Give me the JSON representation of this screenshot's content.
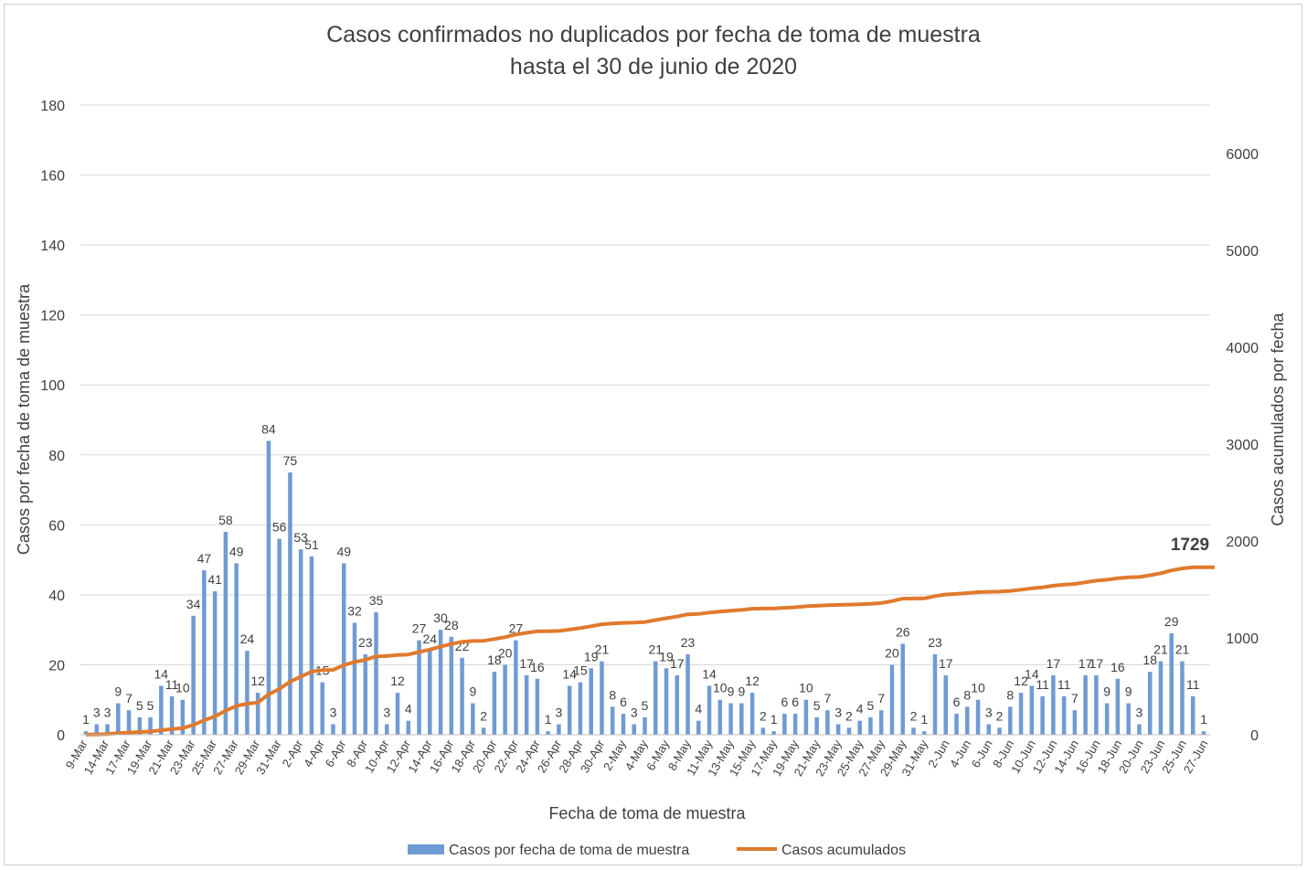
{
  "chart_data": {
    "type": "bar+line",
    "title_line1": "Casos confirmados no duplicados por fecha de toma de muestra",
    "title_line2": "hasta el 30 de junio de 2020",
    "xlabel": "Fecha de toma de muestra",
    "ylabel_left": "Casos por fecha de toma de muestra",
    "ylabel_right": "Casos acumulados por fecha",
    "ylim_left": [
      0,
      180
    ],
    "yticks_left": [
      0,
      20,
      40,
      60,
      80,
      100,
      120,
      140,
      160,
      180
    ],
    "ylim_right": [
      0,
      6500
    ],
    "yticks_right": [
      0,
      1000,
      2000,
      3000,
      4000,
      5000,
      6000
    ],
    "colors": {
      "bars": "#6f9bd4",
      "line": "#e07a2e",
      "grid": "#d9d9d9",
      "text": "#404040"
    },
    "legend_position": "bottom",
    "series": [
      {
        "name": "Casos por fecha de toma de muestra",
        "kind": "bar",
        "values": [
          1,
          3,
          3,
          9,
          7,
          5,
          5,
          14,
          11,
          10,
          34,
          47,
          41,
          58,
          49,
          24,
          12,
          84,
          56,
          75,
          53,
          51,
          15,
          3,
          49,
          32,
          23,
          35,
          3,
          12,
          4,
          27,
          24,
          30,
          28,
          22,
          9,
          2,
          18,
          20,
          27,
          17,
          16,
          1,
          3,
          14,
          15,
          19,
          21,
          8,
          6,
          3,
          5,
          21,
          19,
          17,
          23,
          4,
          14,
          10,
          9,
          9,
          12,
          2,
          1,
          6,
          6,
          10,
          5,
          7,
          3,
          2,
          4,
          5,
          7,
          20,
          26,
          2,
          1,
          23,
          17,
          6,
          8,
          10,
          3,
          2,
          8,
          12,
          14,
          11,
          17,
          11,
          7,
          17,
          17,
          9,
          16,
          9,
          3,
          18,
          21,
          29,
          21,
          11,
          1
        ]
      },
      {
        "name": "Casos acumulados",
        "kind": "line",
        "values": [
          1,
          4,
          7,
          16,
          23,
          28,
          33,
          47,
          58,
          68,
          102,
          149,
          190,
          248,
          297,
          321,
          333,
          417,
          473,
          548,
          601,
          652,
          667,
          670,
          719,
          751,
          774,
          809,
          812,
          824,
          828,
          855,
          879,
          909,
          937,
          959,
          968,
          970,
          988,
          1008,
          1035,
          1052,
          1068,
          1069,
          1072,
          1086,
          1101,
          1120,
          1141,
          1149,
          1155,
          1158,
          1163,
          1184,
          1203,
          1220,
          1243,
          1247,
          1261,
          1271,
          1280,
          1289,
          1301,
          1303,
          1304,
          1310,
          1316,
          1326,
          1331,
          1338,
          1341,
          1343,
          1347,
          1352,
          1359,
          1379,
          1405,
          1407,
          1408,
          1431,
          1448,
          1454,
          1462,
          1472,
          1475,
          1477,
          1485,
          1497,
          1511,
          1522,
          1539,
          1550,
          1557,
          1574,
          1591,
          1600,
          1616,
          1625,
          1628,
          1646,
          1667,
          1696,
          1717,
          1728,
          1729
        ]
      }
    ],
    "x_tick_labels": [
      "9-Mar",
      "14-Mar",
      "17-Mar",
      "19-Mar",
      "21-Mar",
      "23-Mar",
      "25-Mar",
      "27-Mar",
      "29-Mar",
      "31-Mar",
      "2-Apr",
      "4-Apr",
      "6-Apr",
      "8-Apr",
      "10-Apr",
      "12-Apr",
      "14-Apr",
      "16-Apr",
      "18-Apr",
      "20-Apr",
      "22-Apr",
      "24-Apr",
      "26-Apr",
      "28-Apr",
      "30-Apr",
      "2-May",
      "4-May",
      "6-May",
      "8-May",
      "11-May",
      "13-May",
      "15-May",
      "17-May",
      "19-May",
      "21-May",
      "23-May",
      "25-May",
      "27-May",
      "29-May",
      "31-May",
      "2-Jun",
      "4-Jun",
      "6-Jun",
      "8-Jun",
      "10-Jun",
      "12-Jun",
      "14-Jun",
      "16-Jun",
      "18-Jun",
      "20-Jun",
      "23-Jun",
      "25-Jun",
      "27-Jun"
    ],
    "line_end_label": "1729"
  },
  "legend": {
    "bars_label": "Casos por fecha de toma de muestra",
    "line_label": "Casos acumulados"
  }
}
